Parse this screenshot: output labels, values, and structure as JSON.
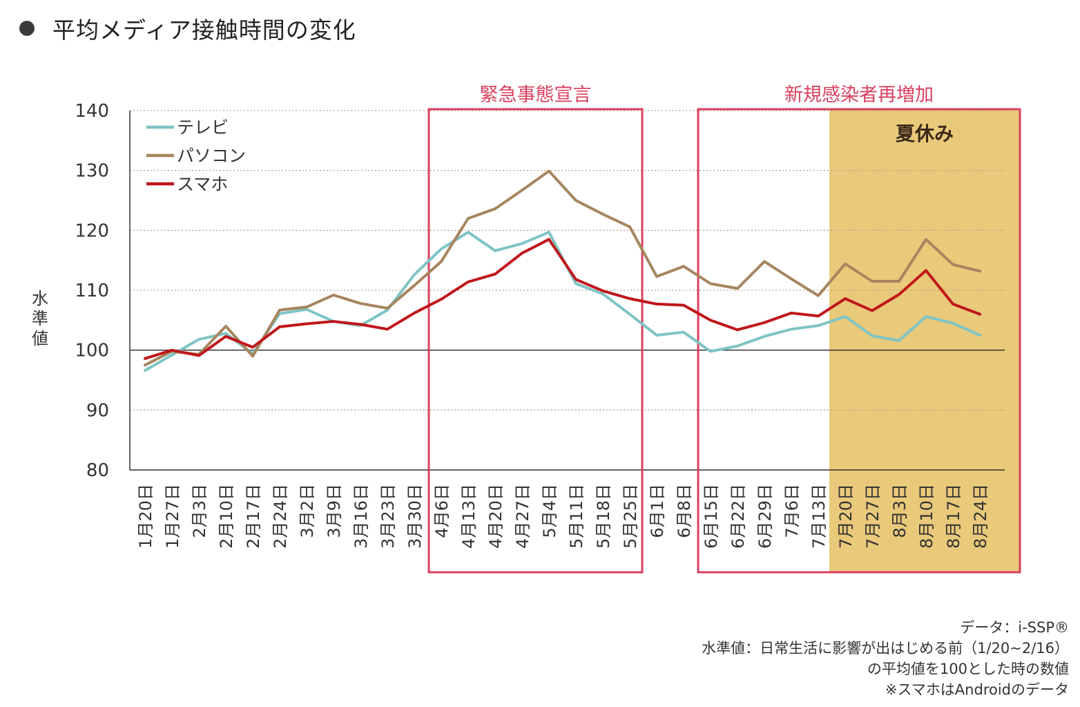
{
  "title": "平均メディア接触時間の変化",
  "notes": [
    "データ：i-SSP®",
    "水準値：日常生活に影響が出はじめる前（1/20~2/16）",
    "の平均値を100とした時の数値",
    "※スマホはAndroidのデータ"
  ],
  "colors": {
    "tv": "#7fc4c4",
    "pc": "#a6855e",
    "smartphone": "#c0161b",
    "highlight_border": "#d8405e",
    "highlight_text": "#d8405e",
    "summer_fill": "#e9c97a"
  },
  "chart_data": {
    "type": "line",
    "ylabel": "水準値",
    "ylim": [
      80,
      140
    ],
    "yticks": [
      80,
      90,
      100,
      110,
      120,
      130,
      140
    ],
    "grid": "dotted horizontal",
    "legend": "top-left",
    "x": [
      "1月20日",
      "1月27日",
      "2月3日",
      "2月10日",
      "2月17日",
      "2月24日",
      "3月2日",
      "3月9日",
      "3月16日",
      "3月23日",
      "3月30日",
      "4月6日",
      "4月13日",
      "4月20日",
      "4月27日",
      "5月4日",
      "5月11日",
      "5月18日",
      "5月25日",
      "6月1日",
      "6月8日",
      "6月15日",
      "6月22日",
      "6月29日",
      "7月6日",
      "7月13日",
      "7月20日",
      "7月27日",
      "8月3日",
      "8月10日",
      "8月17日",
      "8月24日"
    ],
    "series": [
      {
        "name": "テレビ",
        "color": "#7fc4c4",
        "values": [
          96.6,
          99.2,
          101.8,
          102.8,
          99.4,
          106.1,
          106.8,
          104.8,
          104.1,
          106.7,
          112.6,
          116.9,
          119.7,
          116.6,
          117.8,
          119.7,
          111.1,
          109.4,
          106.0,
          102.5,
          103.0,
          99.8,
          100.7,
          102.3,
          103.5,
          104.1,
          105.6,
          102.4,
          101.6,
          105.6,
          104.5,
          102.5
        ]
      },
      {
        "name": "パソコン",
        "color": "#a6855e",
        "values": [
          97.5,
          99.8,
          99.3,
          104.0,
          99.0,
          106.7,
          107.2,
          109.2,
          107.8,
          107.0,
          110.8,
          114.8,
          122.0,
          123.6,
          126.7,
          129.9,
          125.0,
          122.7,
          120.6,
          112.3,
          114.0,
          111.1,
          110.3,
          114.8,
          111.9,
          109.1,
          114.4,
          111.5,
          111.5,
          118.5,
          114.3,
          113.2
        ]
      },
      {
        "name": "スマホ",
        "color": "#c0161b",
        "values": [
          98.6,
          100.0,
          99.1,
          102.3,
          100.5,
          103.9,
          104.4,
          104.8,
          104.3,
          103.5,
          106.2,
          108.5,
          111.4,
          112.7,
          116.2,
          118.5,
          111.8,
          109.9,
          108.6,
          107.7,
          107.5,
          105.0,
          103.4,
          104.6,
          106.2,
          105.7,
          108.6,
          106.6,
          109.3,
          113.3,
          107.7,
          106.0
        ]
      }
    ],
    "annotations": [
      {
        "label": "緊急事態宣言",
        "from": "4月6日",
        "to": "5月25日"
      },
      {
        "label": "新規感染者再増加",
        "from": "6月15日",
        "to": "8月24日"
      },
      {
        "label": "夏休み",
        "from": "7月20日",
        "to": "8月24日",
        "shaded": true
      }
    ]
  }
}
